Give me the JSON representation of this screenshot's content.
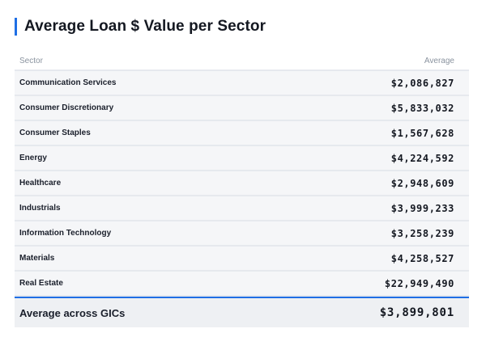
{
  "title": "Average Loan $ Value per Sector",
  "table": {
    "headers": {
      "sector": "Sector",
      "average": "Average"
    },
    "rows": [
      {
        "sector": "Communication Services",
        "average": "$2,086,827"
      },
      {
        "sector": "Consumer Discretionary",
        "average": "$5,833,032"
      },
      {
        "sector": "Consumer Staples",
        "average": "$1,567,628"
      },
      {
        "sector": "Energy",
        "average": "$4,224,592"
      },
      {
        "sector": "Healthcare",
        "average": "$2,948,609"
      },
      {
        "sector": "Industrials",
        "average": "$3,999,233"
      },
      {
        "sector": "Information Technology",
        "average": "$3,258,239"
      },
      {
        "sector": "Materials",
        "average": "$4,258,527"
      },
      {
        "sector": "Real Estate",
        "average": "$22,949,490"
      }
    ],
    "footer": {
      "label": "Average across GICs",
      "value": "$3,899,801"
    }
  },
  "colors": {
    "accent": "#1f6fe5",
    "row_background": "#f5f6f8",
    "footer_background": "#eef0f3",
    "header_text": "#8a939f"
  }
}
